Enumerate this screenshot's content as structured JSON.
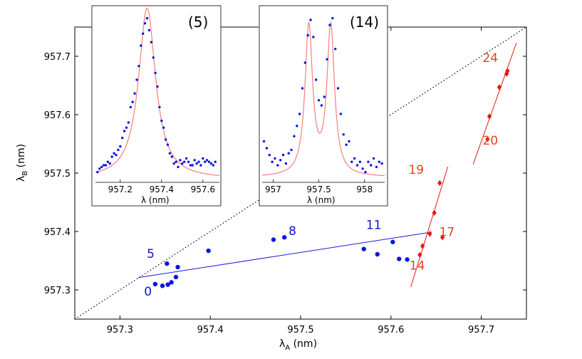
{
  "chart_data": [
    {
      "type": "scatter",
      "title": "",
      "xlabel": "λ",
      "xlabel_sub": "A",
      "xlabel_unit": " (nm)",
      "ylabel": "λ",
      "ylabel_sub": "B",
      "ylabel_unit": " (nm)",
      "xlim": [
        957.25,
        957.75
      ],
      "ylim": [
        957.25,
        957.75
      ],
      "xticks": [
        "957.3",
        "957.4",
        "957.5",
        "957.6",
        "957.7"
      ],
      "yticks": [
        "957.3",
        "957.4",
        "957.5",
        "957.6",
        "957.7"
      ],
      "series": [
        {
          "name": "blue",
          "color": "#0a14e6",
          "marker": "circle",
          "points": [
            {
              "x": 957.339,
              "y": 957.31
            },
            {
              "x": 957.347,
              "y": 957.307
            },
            {
              "x": 957.353,
              "y": 957.309
            },
            {
              "x": 957.357,
              "y": 957.313
            },
            {
              "x": 957.362,
              "y": 957.322
            },
            {
              "x": 957.364,
              "y": 957.339
            },
            {
              "x": 957.352,
              "y": 957.345
            },
            {
              "x": 957.398,
              "y": 957.367
            },
            {
              "x": 957.47,
              "y": 957.386
            },
            {
              "x": 957.482,
              "y": 957.39
            },
            {
              "x": 957.57,
              "y": 957.37
            },
            {
              "x": 957.585,
              "y": 957.361
            },
            {
              "x": 957.602,
              "y": 957.382
            },
            {
              "x": 957.609,
              "y": 957.353
            },
            {
              "x": 957.618,
              "y": 957.352
            }
          ]
        },
        {
          "name": "red",
          "color": "#e8170c",
          "marker": "diamond",
          "points": [
            {
              "x": 957.632,
              "y": 957.36
            },
            {
              "x": 957.635,
              "y": 957.375
            },
            {
              "x": 957.643,
              "y": 957.396
            },
            {
              "x": 957.648,
              "y": 957.432
            },
            {
              "x": 957.654,
              "y": 957.483
            },
            {
              "x": 957.657,
              "y": 957.39
            },
            {
              "x": 957.707,
              "y": 957.558
            },
            {
              "x": 957.709,
              "y": 957.597
            },
            {
              "x": 957.72,
              "y": 957.647
            },
            {
              "x": 957.728,
              "y": 957.67
            },
            {
              "x": 957.729,
              "y": 957.675
            }
          ]
        }
      ],
      "lines": [
        {
          "name": "diagonal",
          "style": "dotted",
          "color": "#000000",
          "from": [
            957.25,
            957.25
          ],
          "to": [
            957.75,
            957.75
          ]
        },
        {
          "name": "blue-fit",
          "style": "solid",
          "color": "#1a1ae6",
          "from": [
            957.32,
            957.321
          ],
          "to": [
            957.645,
            957.399
          ]
        },
        {
          "name": "red-fit-lower",
          "style": "solid",
          "color": "#e8170c",
          "from": [
            957.622,
            957.305
          ],
          "to": [
            957.663,
            957.511
          ]
        },
        {
          "name": "red-fit-upper",
          "style": "solid",
          "color": "#e8170c",
          "from": [
            957.691,
            957.515
          ],
          "to": [
            957.739,
            957.723
          ]
        }
      ],
      "annotations": [
        {
          "text": "0",
          "color": "blue",
          "x": 957.331,
          "y": 957.29
        },
        {
          "text": "5",
          "color": "blue",
          "x": 957.334,
          "y": 957.355
        },
        {
          "text": "8",
          "color": "blue",
          "x": 957.491,
          "y": 957.394
        },
        {
          "text": "11",
          "color": "blue",
          "x": 957.581,
          "y": 957.404
        },
        {
          "text": "14",
          "color": "red",
          "x": 957.629,
          "y": 957.335
        },
        {
          "text": "17",
          "color": "red",
          "x": 957.662,
          "y": 957.392
        },
        {
          "text": "19",
          "color": "red",
          "x": 957.628,
          "y": 957.499
        },
        {
          "text": "20",
          "color": "red",
          "x": 957.71,
          "y": 957.549
        },
        {
          "text": "24",
          "color": "red",
          "x": 957.71,
          "y": 957.69
        }
      ]
    },
    {
      "type": "line",
      "title": "(5)",
      "xlabel": "λ (nm)",
      "xlim": [
        957.08,
        957.68
      ],
      "xticks": [
        "957.2",
        "957.4",
        "957.6"
      ],
      "xtick_values": [
        957.2,
        957.4,
        957.6
      ],
      "ylim": [
        0,
        1
      ],
      "series": [
        {
          "name": "fit",
          "color": "#f2807a",
          "kind": "lorentzian",
          "peaks": [
            {
              "center": 957.33,
              "height": 1.0,
              "hwhm": 0.05
            }
          ],
          "baseline": 0.02
        },
        {
          "name": "data",
          "color": "#0a14e6",
          "kind": "points",
          "x": [
            957.09,
            957.1,
            957.11,
            957.12,
            957.13,
            957.14,
            957.15,
            957.16,
            957.17,
            957.18,
            957.19,
            957.2,
            957.21,
            957.22,
            957.23,
            957.24,
            957.25,
            957.26,
            957.27,
            957.28,
            957.29,
            957.3,
            957.31,
            957.32,
            957.33,
            957.34,
            957.35,
            957.36,
            957.37,
            957.38,
            957.39,
            957.4,
            957.41,
            957.42,
            957.43,
            957.44,
            957.45,
            957.46,
            957.47,
            957.48,
            957.49,
            957.5,
            957.51,
            957.52,
            957.53,
            957.54,
            957.55,
            957.56,
            957.57,
            957.58,
            957.59,
            957.6,
            957.61,
            957.62,
            957.63,
            957.64,
            957.65,
            957.66
          ],
          "y": [
            0.06,
            0.08,
            0.09,
            0.1,
            0.1,
            0.12,
            0.11,
            0.15,
            0.17,
            0.16,
            0.19,
            0.21,
            0.26,
            0.3,
            0.32,
            0.35,
            0.44,
            0.47,
            0.52,
            0.6,
            0.68,
            0.8,
            0.87,
            0.93,
            0.96,
            0.89,
            0.82,
            0.73,
            0.64,
            0.56,
            0.44,
            0.36,
            0.32,
            0.25,
            0.22,
            0.17,
            0.15,
            0.11,
            0.12,
            0.09,
            0.13,
            0.11,
            0.12,
            0.14,
            0.12,
            0.1,
            0.1,
            0.13,
            0.11,
            0.12,
            0.1,
            0.14,
            0.12,
            0.13,
            0.12,
            0.11,
            0.1,
            0.12
          ]
        }
      ]
    },
    {
      "type": "line",
      "title": "(14)",
      "xlabel": "λ (nm)",
      "xlim": [
        956.88,
        958.22
      ],
      "xticks": [
        "957",
        "957.5",
        "958"
      ],
      "xtick_values": [
        957.0,
        957.5,
        958.0
      ],
      "ylim": [
        0,
        1
      ],
      "series": [
        {
          "name": "fit",
          "color": "#f2807a",
          "kind": "lorentzian",
          "peaks": [
            {
              "center": 957.39,
              "height": 0.87,
              "hwhm": 0.05
            },
            {
              "center": 957.63,
              "height": 0.87,
              "hwhm": 0.05
            }
          ],
          "baseline": 0.03
        },
        {
          "name": "data",
          "color": "#0a14e6",
          "kind": "points",
          "x": [
            956.9,
            956.93,
            956.96,
            956.99,
            957.02,
            957.05,
            957.08,
            957.11,
            957.14,
            957.17,
            957.2,
            957.23,
            957.26,
            957.29,
            957.32,
            957.35,
            957.38,
            957.41,
            957.44,
            957.47,
            957.5,
            957.53,
            957.56,
            957.59,
            957.62,
            957.65,
            957.68,
            957.71,
            957.74,
            957.77,
            957.8,
            957.83,
            957.86,
            957.89,
            957.92,
            957.95,
            957.98,
            958.01,
            958.04,
            958.07,
            958.1,
            958.13,
            958.16,
            958.19
          ],
          "y": [
            0.24,
            0.2,
            0.16,
            0.12,
            0.14,
            0.1,
            0.13,
            0.16,
            0.11,
            0.17,
            0.19,
            0.27,
            0.33,
            0.4,
            0.55,
            0.7,
            0.86,
            0.95,
            0.85,
            0.6,
            0.48,
            0.45,
            0.5,
            0.72,
            0.92,
            0.96,
            0.78,
            0.55,
            0.4,
            0.28,
            0.22,
            0.24,
            0.12,
            0.14,
            0.1,
            0.12,
            0.08,
            0.06,
            0.12,
            0.1,
            0.14,
            0.09,
            0.12,
            0.11
          ]
        }
      ]
    }
  ]
}
